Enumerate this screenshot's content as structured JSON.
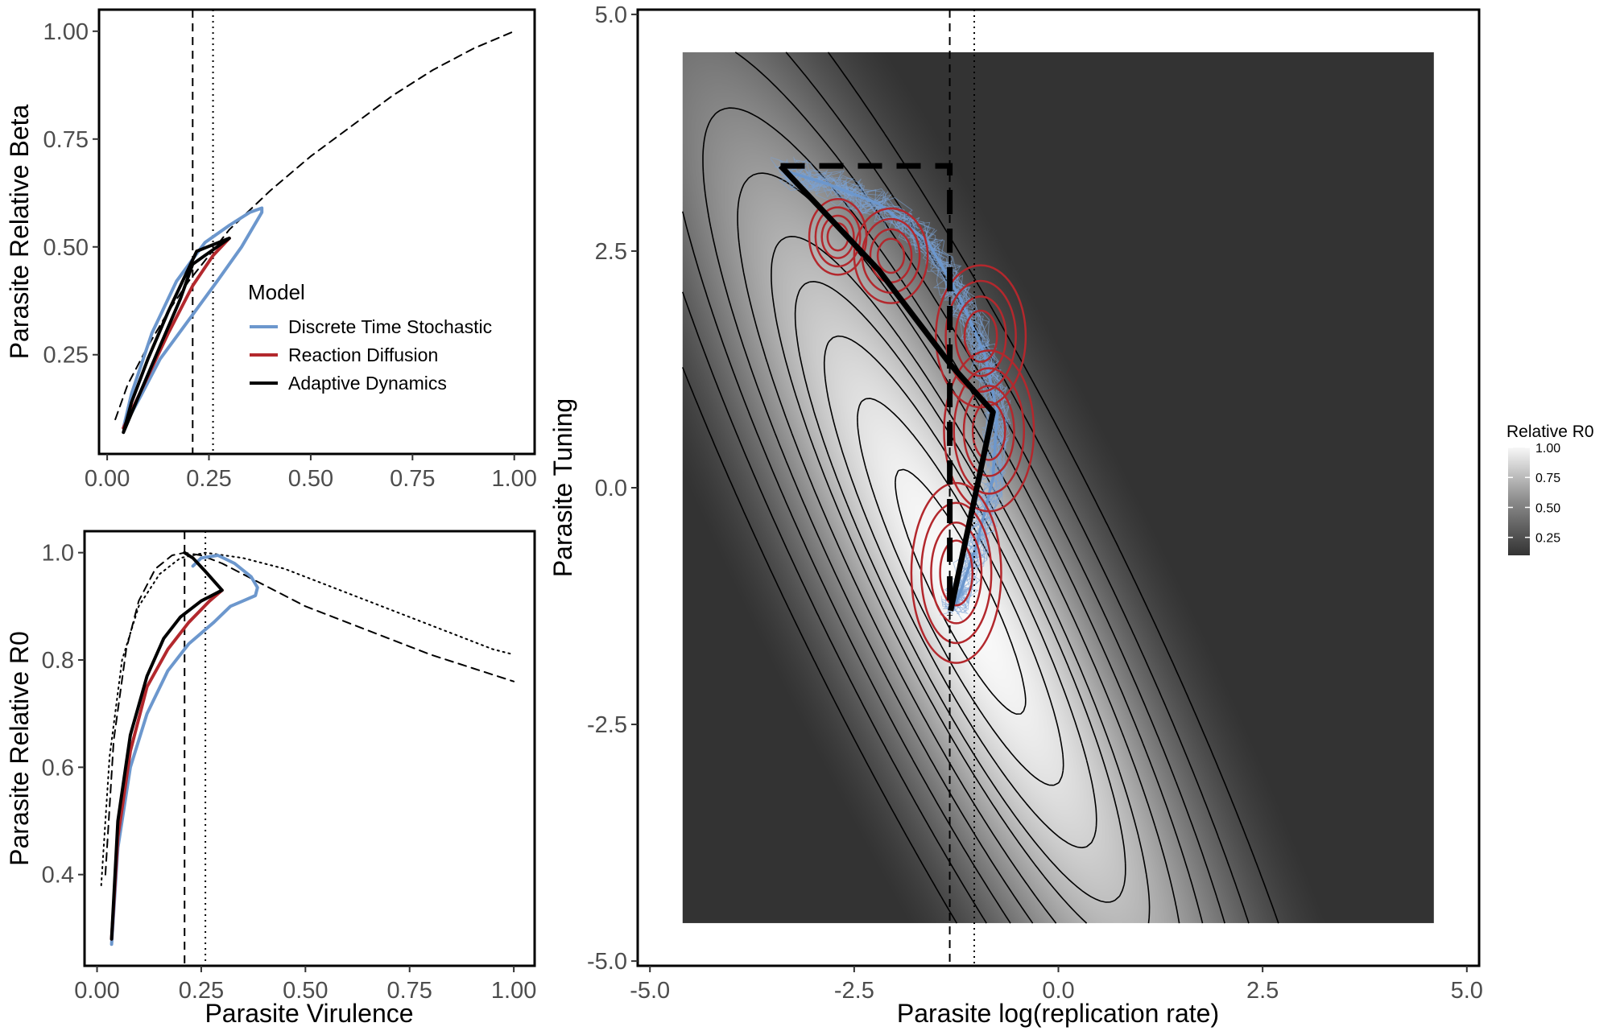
{
  "chart_data": [
    {
      "id": "beta",
      "type": "line",
      "xlabel": "",
      "ylabel": "Parasite Relative Beta",
      "xlim": [
        -0.02,
        1.05
      ],
      "ylim": [
        0.02,
        1.05
      ],
      "xticks": [
        {
          "value": 0,
          "label": "0.00"
        },
        {
          "value": 0.25,
          "label": "0.25"
        },
        {
          "value": 0.5,
          "label": "0.50"
        },
        {
          "value": 0.75,
          "label": "0.75"
        },
        {
          "value": 1,
          "label": "1.00"
        }
      ],
      "yticks": [
        {
          "value": 0.25,
          "label": "0.25"
        },
        {
          "value": 0.5,
          "label": "0.50"
        },
        {
          "value": 0.75,
          "label": "0.75"
        },
        {
          "value": 1,
          "label": "1.00"
        }
      ],
      "vlines": [
        {
          "x": 0.21,
          "style": "dashed"
        },
        {
          "x": 0.26,
          "style": "dotted"
        }
      ],
      "series": [
        {
          "style": "dashed",
          "color": "#000000",
          "x": [
            0.02,
            0.05,
            0.1,
            0.15,
            0.2,
            0.25,
            0.3,
            0.4,
            0.5,
            0.6,
            0.7,
            0.8,
            0.9,
            1.0
          ],
          "y": [
            0.1,
            0.18,
            0.27,
            0.35,
            0.42,
            0.48,
            0.54,
            0.63,
            0.71,
            0.78,
            0.85,
            0.91,
            0.96,
            1.0
          ]
        },
        {
          "name": "Discrete Time Stochastic",
          "color": "#6c97cd",
          "x": [
            0.04,
            0.08,
            0.13,
            0.2,
            0.27,
            0.33,
            0.38,
            0.38,
            0.35,
            0.3,
            0.24,
            0.17,
            0.11,
            0.06,
            0.04
          ],
          "y": [
            0.08,
            0.15,
            0.24,
            0.33,
            0.42,
            0.5,
            0.58,
            0.59,
            0.58,
            0.55,
            0.51,
            0.42,
            0.3,
            0.16,
            0.08
          ]
        },
        {
          "name": "Reaction Diffusion",
          "color": "#b3282d",
          "x": [
            0.04,
            0.09,
            0.15,
            0.21,
            0.26,
            0.3
          ],
          "y": [
            0.08,
            0.18,
            0.3,
            0.41,
            0.48,
            0.52
          ]
        },
        {
          "name": "Adaptive Dynamics",
          "color": "#000000",
          "x": [
            0.04,
            0.08,
            0.13,
            0.18,
            0.21,
            0.3,
            0.22,
            0.2,
            0.15,
            0.1,
            0.06,
            0.04
          ],
          "y": [
            0.07,
            0.16,
            0.27,
            0.38,
            0.46,
            0.52,
            0.49,
            0.45,
            0.35,
            0.24,
            0.14,
            0.07
          ]
        }
      ],
      "legend": {
        "title": "Model",
        "position": "bottom-right",
        "entries": [
          {
            "label": "Discrete Time Stochastic",
            "color": "#6c97cd"
          },
          {
            "label": "Reaction Diffusion",
            "color": "#b3282d"
          },
          {
            "label": "Adaptive Dynamics",
            "color": "#000000"
          }
        ]
      }
    },
    {
      "id": "r0",
      "type": "line",
      "xlabel": "Parasite Virulence",
      "ylabel": "Parasite Relative R0",
      "xlim": [
        -0.03,
        1.05
      ],
      "ylim": [
        0.23,
        1.04
      ],
      "xticks": [
        {
          "value": 0,
          "label": "0.00"
        },
        {
          "value": 0.25,
          "label": "0.25"
        },
        {
          "value": 0.5,
          "label": "0.50"
        },
        {
          "value": 0.75,
          "label": "0.75"
        },
        {
          "value": 1,
          "label": "1.00"
        }
      ],
      "yticks": [
        {
          "value": 0.4,
          "label": "0.4"
        },
        {
          "value": 0.6,
          "label": "0.6"
        },
        {
          "value": 0.8,
          "label": "0.8"
        },
        {
          "value": 1,
          "label": "1.0"
        }
      ],
      "vlines": [
        {
          "x": 0.21,
          "style": "dashed"
        },
        {
          "x": 0.26,
          "style": "dotted"
        }
      ],
      "series": [
        {
          "style": "dashed",
          "color": "#000000",
          "x": [
            0.02,
            0.04,
            0.07,
            0.1,
            0.14,
            0.18,
            0.21,
            0.25,
            0.3,
            0.4,
            0.5,
            0.6,
            0.7,
            0.8,
            0.9,
            1.0
          ],
          "y": [
            0.4,
            0.65,
            0.82,
            0.91,
            0.97,
            0.995,
            1.0,
            0.995,
            0.98,
            0.94,
            0.9,
            0.87,
            0.84,
            0.81,
            0.785,
            0.76
          ]
        },
        {
          "style": "dotted",
          "color": "#000000",
          "x": [
            0.01,
            0.03,
            0.06,
            0.1,
            0.15,
            0.2,
            0.26,
            0.35,
            0.45,
            0.55,
            0.65,
            0.75,
            0.85,
            0.95,
            1.0
          ],
          "y": [
            0.38,
            0.62,
            0.8,
            0.9,
            0.96,
            0.99,
            1.0,
            0.99,
            0.97,
            0.94,
            0.91,
            0.88,
            0.85,
            0.82,
            0.81
          ]
        },
        {
          "name": "Discrete Time Stochastic",
          "color": "#6c97cd",
          "x": [
            0.035,
            0.05,
            0.08,
            0.12,
            0.17,
            0.22,
            0.28,
            0.32,
            0.35,
            0.38,
            0.385,
            0.37,
            0.33,
            0.29,
            0.25,
            0.23
          ],
          "y": [
            0.27,
            0.45,
            0.6,
            0.7,
            0.78,
            0.83,
            0.87,
            0.9,
            0.91,
            0.92,
            0.935,
            0.955,
            0.98,
            0.995,
            0.99,
            0.975
          ]
        },
        {
          "name": "Reaction Diffusion",
          "color": "#b3282d",
          "x": [
            0.035,
            0.05,
            0.08,
            0.12,
            0.17,
            0.22,
            0.27,
            0.3
          ],
          "y": [
            0.28,
            0.47,
            0.63,
            0.75,
            0.82,
            0.87,
            0.91,
            0.93
          ]
        },
        {
          "name": "Adaptive Dynamics",
          "color": "#000000",
          "x": [
            0.035,
            0.05,
            0.08,
            0.12,
            0.16,
            0.2,
            0.25,
            0.3,
            0.26,
            0.23,
            0.21
          ],
          "y": [
            0.28,
            0.5,
            0.66,
            0.77,
            0.84,
            0.88,
            0.91,
            0.93,
            0.965,
            0.99,
            1.0
          ]
        }
      ]
    },
    {
      "id": "landscape",
      "type": "heatmap",
      "xlabel": "Parasite log(replication rate)",
      "ylabel": "Parasite Tuning",
      "xlim": [
        -5.15,
        5.15
      ],
      "ylim": [
        -5.05,
        5.05
      ],
      "extent": {
        "x": [
          -4.6,
          4.6
        ],
        "y": [
          -4.6,
          4.6
        ]
      },
      "xticks": [
        {
          "value": -5,
          "label": "-5.0"
        },
        {
          "value": -2.5,
          "label": "-2.5"
        },
        {
          "value": 0,
          "label": "0.0"
        },
        {
          "value": 2.5,
          "label": "2.5"
        },
        {
          "value": 5,
          "label": "5.0"
        }
      ],
      "yticks": [
        {
          "value": -5,
          "label": "-5.0"
        },
        {
          "value": -2.5,
          "label": "-2.5"
        },
        {
          "value": 0,
          "label": "0.0"
        },
        {
          "value": 2.5,
          "label": "2.5"
        },
        {
          "value": 5,
          "label": "5.0"
        }
      ],
      "vlines": [
        {
          "x": -1.33,
          "style": "dashed"
        },
        {
          "x": -1.03,
          "style": "dotted"
        }
      ],
      "optimum": {
        "x": -1.2,
        "y": -1.1
      },
      "contour_levels": [
        0.15,
        0.25,
        0.35,
        0.45,
        0.55,
        0.65,
        0.72,
        0.8,
        0.88,
        0.95
      ],
      "adaptive_dynamics_path": {
        "x": [
          -3.4,
          -2.2,
          -1.32,
          -0.8,
          -1.32
        ],
        "y": [
          3.4,
          2.3,
          1.3,
          0.8,
          -1.3
        ]
      },
      "dashed_path": {
        "x": [
          -3.4,
          -1.33,
          -1.33
        ],
        "y": [
          3.4,
          3.4,
          -1.35
        ]
      },
      "stochastic_trajectories": {
        "x": [
          -3.35,
          -2.8,
          -2.2,
          -1.6,
          -1.2,
          -0.9,
          -0.75,
          -0.8,
          -1.0,
          -1.2,
          -1.3
        ],
        "y": [
          3.35,
          3.2,
          3.0,
          2.6,
          2.0,
          1.4,
          0.8,
          0.1,
          -0.6,
          -1.1,
          -1.3
        ]
      },
      "reaction_diffusion_ellipses": [
        {
          "x": -2.7,
          "y": 2.65,
          "rx": 0.35,
          "ry": 0.4
        },
        {
          "x": -2.05,
          "y": 2.45,
          "rx": 0.45,
          "ry": 0.5
        },
        {
          "x": -0.95,
          "y": 1.6,
          "rx": 0.55,
          "ry": 0.75
        },
        {
          "x": -0.85,
          "y": 0.6,
          "rx": 0.55,
          "ry": 0.85
        },
        {
          "x": -1.25,
          "y": -0.9,
          "rx": 0.55,
          "ry": 0.95
        }
      ],
      "colorbar": {
        "title": "Relative R0",
        "range": [
          0.1,
          1.0
        ],
        "ticks": [
          {
            "value": 1.0,
            "label": "1.00"
          },
          {
            "value": 0.75,
            "label": "0.75"
          },
          {
            "value": 0.5,
            "label": "0.50"
          },
          {
            "value": 0.25,
            "label": "0.25"
          }
        ]
      }
    }
  ]
}
